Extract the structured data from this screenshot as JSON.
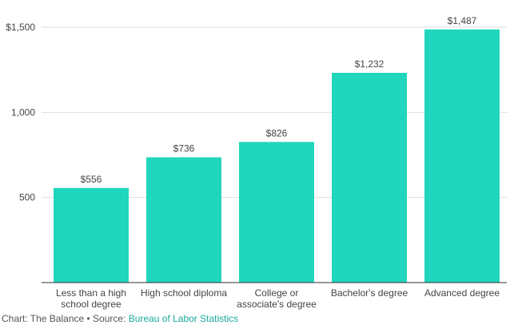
{
  "colors": {
    "bar": "#20d6bd",
    "link": "#1aa89a"
  },
  "credit": {
    "prefix": "Chart: The Balance • Source: ",
    "source_link": "Bureau of Labor Statistics"
  },
  "chart_data": {
    "type": "bar",
    "title": "",
    "xlabel": "",
    "ylabel": "",
    "categories": [
      [
        "Less than a high",
        "school degree"
      ],
      [
        "High school diploma"
      ],
      [
        "College or",
        "associate's degree"
      ],
      [
        "Bachelor's degree"
      ],
      [
        "Advanced degree"
      ]
    ],
    "values": [
      556,
      736,
      826,
      1232,
      1487
    ],
    "value_labels": [
      "$556",
      "$736",
      "$826",
      "$1,232",
      "$1,487"
    ],
    "ylim": [
      0,
      1500
    ],
    "yticks": [
      500,
      1000,
      1500
    ],
    "ytick_labels": [
      "500",
      "1,000",
      "$1,500"
    ],
    "grid": true,
    "legend": "none"
  }
}
